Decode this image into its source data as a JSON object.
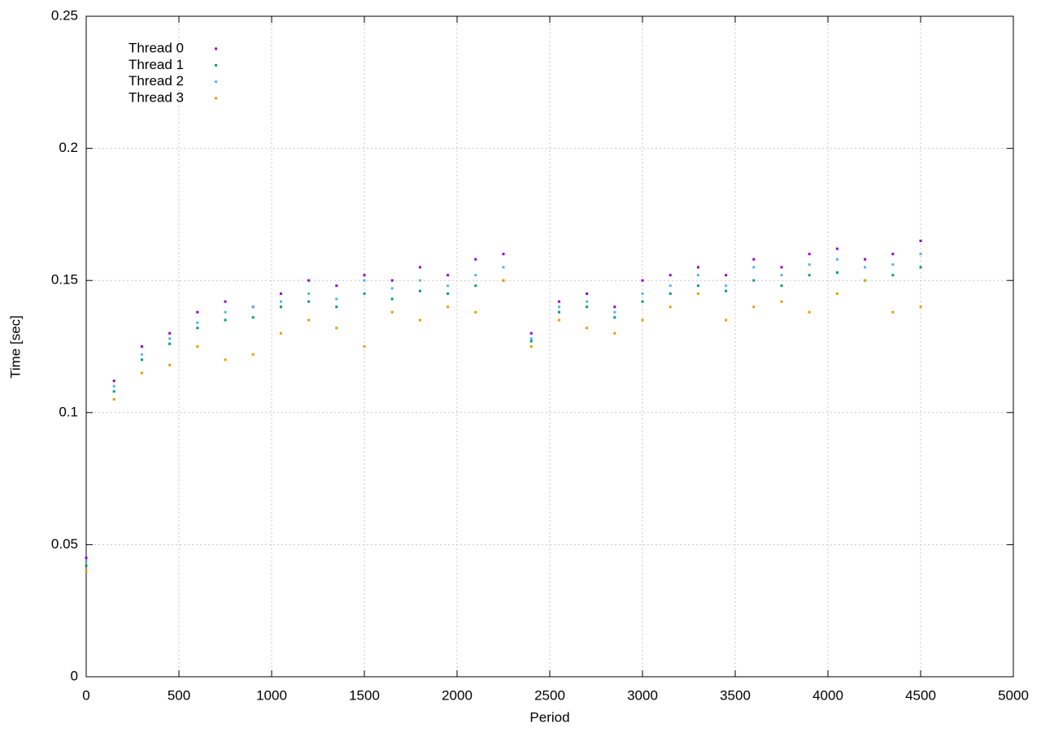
{
  "chart_data": {
    "type": "scatter",
    "y_label": "Time [sec]",
    "x_label": "Period",
    "xlim": [
      0,
      5000
    ],
    "xticks": [
      0,
      500,
      1000,
      1500,
      2000,
      2500,
      3000,
      3500,
      4000,
      4500,
      5000
    ],
    "ylim": [
      0,
      0.25
    ],
    "yticks": [
      0,
      0.05,
      0.1,
      0.15,
      0.2,
      0.25
    ],
    "grid": true,
    "legend": "upper-left",
    "x": [
      0,
      150,
      300,
      450,
      600,
      750,
      900,
      1050,
      1200,
      1350,
      1500,
      1650,
      1800,
      1950,
      2100,
      2250,
      2400,
      2550,
      2700,
      2850,
      3000,
      3150,
      3300,
      3450,
      3600,
      3750,
      3900,
      4050,
      4200,
      4350,
      4500
    ],
    "series": [
      {
        "name": "Thread 0",
        "color": "#9400d3",
        "values": [
          0.045,
          0.112,
          0.125,
          0.13,
          0.138,
          0.142,
          0.14,
          0.145,
          0.15,
          0.148,
          0.152,
          0.15,
          0.155,
          0.152,
          0.158,
          0.16,
          0.13,
          0.142,
          0.145,
          0.14,
          0.15,
          0.152,
          0.155,
          0.152,
          0.158,
          0.155,
          0.16,
          0.162,
          0.158,
          0.16,
          0.165
        ]
      },
      {
        "name": "Thread 1",
        "color": "#009e73",
        "values": [
          0.042,
          0.108,
          0.12,
          0.126,
          0.132,
          0.135,
          0.136,
          0.14,
          0.142,
          0.14,
          0.145,
          0.143,
          0.146,
          0.145,
          0.148,
          0.15,
          0.127,
          0.138,
          0.14,
          0.136,
          0.142,
          0.145,
          0.148,
          0.146,
          0.15,
          0.148,
          0.152,
          0.153,
          0.15,
          0.152,
          0.155
        ]
      },
      {
        "name": "Thread 2",
        "color": "#56b4e9",
        "values": [
          0.044,
          0.11,
          0.122,
          0.128,
          0.134,
          0.138,
          0.14,
          0.142,
          0.145,
          0.143,
          0.15,
          0.147,
          0.15,
          0.148,
          0.152,
          0.155,
          0.128,
          0.14,
          0.142,
          0.138,
          0.145,
          0.148,
          0.152,
          0.148,
          0.155,
          0.152,
          0.156,
          0.158,
          0.155,
          0.156,
          0.16
        ]
      },
      {
        "name": "Thread 3",
        "color": "#e69f00",
        "values": [
          0.04,
          0.105,
          0.115,
          0.118,
          0.125,
          0.12,
          0.122,
          0.13,
          0.135,
          0.132,
          0.125,
          0.138,
          0.135,
          0.14,
          0.138,
          0.15,
          0.125,
          0.135,
          0.132,
          0.13,
          0.135,
          0.14,
          0.145,
          0.135,
          0.14,
          0.142,
          0.138,
          0.145,
          0.15,
          0.138,
          0.14
        ]
      }
    ]
  }
}
